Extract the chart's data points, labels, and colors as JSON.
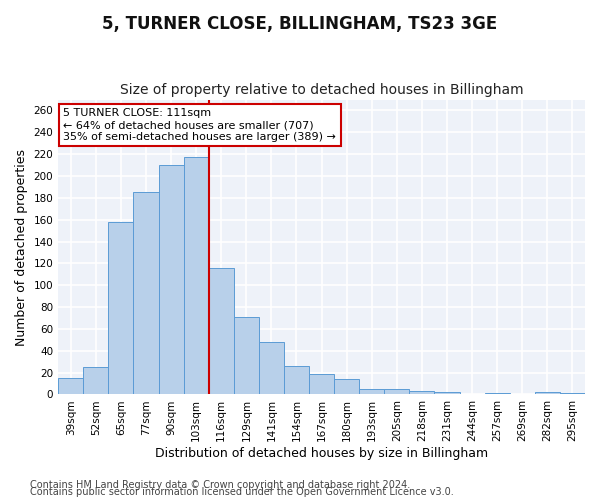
{
  "title": "5, TURNER CLOSE, BILLINGHAM, TS23 3GE",
  "subtitle": "Size of property relative to detached houses in Billingham",
  "xlabel": "Distribution of detached houses by size in Billingham",
  "ylabel": "Number of detached properties",
  "categories": [
    "39sqm",
    "52sqm",
    "65sqm",
    "77sqm",
    "90sqm",
    "103sqm",
    "116sqm",
    "129sqm",
    "141sqm",
    "154sqm",
    "167sqm",
    "180sqm",
    "193sqm",
    "205sqm",
    "218sqm",
    "231sqm",
    "244sqm",
    "257sqm",
    "269sqm",
    "282sqm",
    "295sqm"
  ],
  "values": [
    15,
    25,
    158,
    185,
    210,
    217,
    116,
    71,
    48,
    26,
    19,
    14,
    5,
    5,
    3,
    2,
    0,
    1,
    0,
    2,
    1
  ],
  "bar_color": "#b8d0ea",
  "bar_edge_color": "#5b9bd5",
  "vline_x": 5.5,
  "vline_color": "#cc0000",
  "annotation_text": "5 TURNER CLOSE: 111sqm\n← 64% of detached houses are smaller (707)\n35% of semi-detached houses are larger (389) →",
  "annotation_box_color": "#ffffff",
  "annotation_box_edge_color": "#cc0000",
  "ylim": [
    0,
    270
  ],
  "yticks": [
    0,
    20,
    40,
    60,
    80,
    100,
    120,
    140,
    160,
    180,
    200,
    220,
    240,
    260
  ],
  "footer1": "Contains HM Land Registry data © Crown copyright and database right 2024.",
  "footer2": "Contains public sector information licensed under the Open Government Licence v3.0.",
  "bg_color": "#eef2f9",
  "grid_color": "#ffffff",
  "title_fontsize": 12,
  "subtitle_fontsize": 10,
  "label_fontsize": 9,
  "tick_fontsize": 7.5,
  "footer_fontsize": 7
}
